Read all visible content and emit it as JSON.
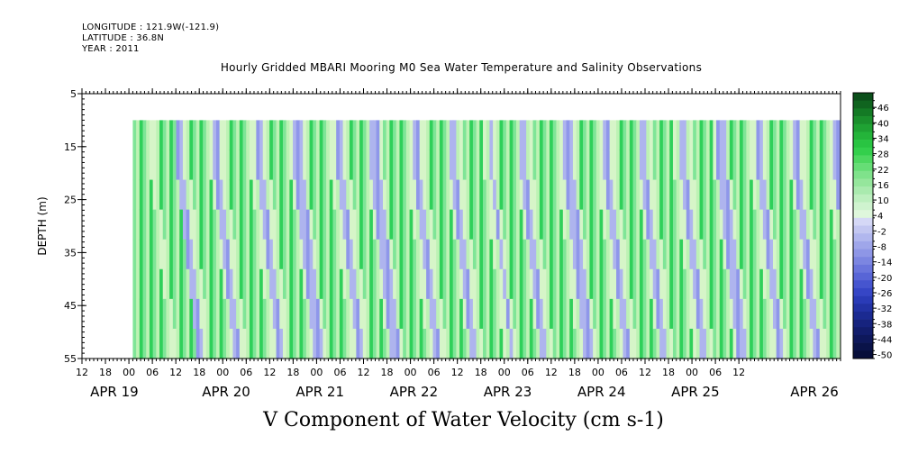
{
  "header": {
    "longitude": "LONGITUDE : 121.9W(-121.9)",
    "latitude": "LATITUDE : 36.8N",
    "year": "YEAR : 2011"
  },
  "chart_data": {
    "type": "heatmap",
    "title": "Hourly Gridded MBARI Mooring M0 Sea Water Temperature and Salinity Observations",
    "xlabel_title": "V Component of Water Velocity (cm s-1)",
    "ylabel": "DEPTH (m)",
    "y_ticks": [
      "5",
      "15",
      "25",
      "35",
      "45",
      "55"
    ],
    "ylim": [
      55,
      5
    ],
    "data_depth_range": [
      10,
      55
    ],
    "x_hour_ticks": [
      "12",
      "18",
      "00",
      "06",
      "12",
      "18",
      "00",
      "06",
      "12",
      "18",
      "00",
      "06",
      "12",
      "18",
      "00",
      "06",
      "12",
      "18",
      "00",
      "06",
      "12",
      "18",
      "00",
      "06",
      "12",
      "18",
      "00",
      "06",
      "12"
    ],
    "x_date_labels": [
      "APR 19",
      "APR 20",
      "APR 21",
      "APR 22",
      "APR 23",
      "APR 24",
      "APR 25",
      "APR 26"
    ],
    "x_range": [
      "2011-04-18 12:00",
      "2011-04-26 14:00"
    ],
    "data_start": "2011-04-19 01:00",
    "colorbar": {
      "levels": [
        "46",
        "40",
        "34",
        "28",
        "22",
        "16",
        "10",
        "4",
        "-2",
        "-8",
        "-14",
        "-20",
        "-26",
        "-32",
        "-38",
        "-44",
        "-50"
      ],
      "range": [
        -50,
        49
      ]
    },
    "column_pattern": "G G G G G L L G G G G G G B B L L G G G G G G L B B L L G G G G G G G L L B B L L G G G G G G L B B B L G G G G G G G L L B B L L G G G G G L B B B L G G G G G G G L L B B L L G G G G G G L B B L L G G G G G G L L B L G G G G G G L B B L L G G G G G G G L L B B B L G G G G G G L L B B L L G G G G G G L B B L L G G G G G G L L B B L L G G G G G G L B B B L G G G G G G L L B B L G G G G G G G L B B L L G G G G G G L L B B",
    "column_pattern_legend": {
      "G": "positive (green)",
      "L": "near zero (light)",
      "B": "negative (blue)"
    },
    "colors": {
      "positive_light": "#bdf2b4",
      "positive": "#7fe597",
      "positive_strong": "#2fd05a",
      "near_zero": "#d6f5c8",
      "negative": "#aeb4ee",
      "negative_strong": "#8f97ea"
    }
  }
}
